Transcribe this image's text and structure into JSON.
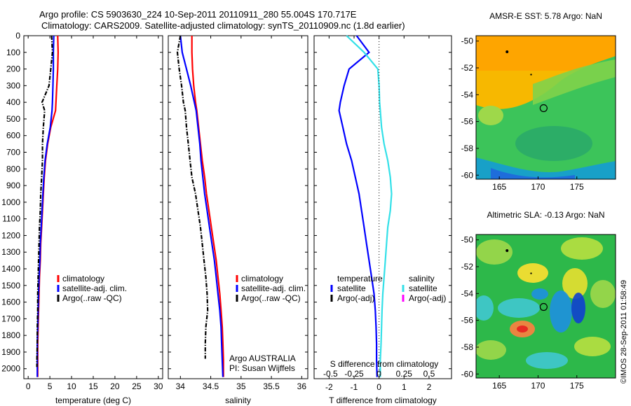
{
  "header": {
    "title_line1": "Argo profile: CS 5903630_224 10-Sep-2011 20110911_280 55.004S 170.717E",
    "title_line2": "Climatology: CARS2009. Satellite-adjusted climatology: synTS_20110909.nc (1.8d earlier)"
  },
  "credit": "©IMOS 28-Sep-2011 01:58:49",
  "colors": {
    "climatology": "#ff0000",
    "satellite": "#0000ff",
    "argo": "#000000",
    "salinity_satellite": "#33e0e8",
    "salinity_argo": "#ff00ff"
  },
  "chart_data": [
    {
      "id": "temperature",
      "type": "line",
      "xlabel": "temperature (deg C)",
      "ylabel": "",
      "xlim": [
        -1,
        31
      ],
      "ylim": [
        2060,
        0
      ],
      "xticks": [
        0,
        5,
        10,
        15,
        20,
        25,
        30
      ],
      "yticks": [
        0,
        100,
        200,
        300,
        400,
        500,
        600,
        700,
        800,
        900,
        1000,
        1100,
        1200,
        1300,
        1400,
        1500,
        1600,
        1700,
        1800,
        1900,
        2000
      ],
      "legend": [
        "climatology",
        "satellite-adj. clim.",
        "Argo(..raw -QC)"
      ],
      "series": [
        {
          "name": "climatology",
          "color": "#ff0000",
          "style": "solid",
          "x": [
            6.8,
            6.9,
            6.8,
            6.6,
            6.4,
            6.3,
            5.2,
            4.5,
            4.0,
            3.7,
            3.5,
            3.3,
            3.1,
            2.9,
            2.8,
            2.6,
            2.5,
            2.4,
            2.3,
            2.2,
            2.2,
            2.2
          ],
          "y": [
            0,
            100,
            200,
            300,
            400,
            450,
            550,
            650,
            750,
            850,
            950,
            1050,
            1150,
            1250,
            1350,
            1450,
            1550,
            1650,
            1750,
            1850,
            1950,
            2050
          ]
        },
        {
          "name": "satellite-adj. clim.",
          "color": "#0000ff",
          "style": "solid",
          "x": [
            5.9,
            5.8,
            5.8,
            5.7,
            5.6,
            5.5,
            5.1,
            4.4,
            3.9,
            3.6,
            3.4,
            3.2,
            3.0,
            2.8,
            2.7,
            2.5,
            2.4,
            2.3,
            2.2,
            2.1,
            2.1,
            2.1
          ],
          "y": [
            0,
            100,
            200,
            300,
            400,
            450,
            550,
            650,
            750,
            850,
            950,
            1050,
            1150,
            1250,
            1350,
            1450,
            1550,
            1650,
            1750,
            1850,
            1950,
            2050
          ]
        },
        {
          "name": "Argo(..raw -QC)",
          "color": "#000000",
          "style": "dashdot",
          "x": [
            5.4,
            5.6,
            5.2,
            4.8,
            3.2,
            3.8,
            3.5,
            3.3,
            3.3,
            3.1,
            2.9,
            2.8,
            2.6,
            2.5,
            2.4,
            2.3,
            2.2,
            2.2,
            2.1,
            2.1,
            2.0,
            2.0
          ],
          "y": [
            0,
            100,
            200,
            300,
            400,
            450,
            550,
            650,
            750,
            850,
            950,
            1050,
            1150,
            1250,
            1350,
            1450,
            1550,
            1650,
            1750,
            1850,
            1950,
            1990
          ]
        }
      ]
    },
    {
      "id": "salinity",
      "type": "line",
      "xlabel": "salinity",
      "ylabel": "",
      "xlim": [
        33.8,
        36.1
      ],
      "ylim": [
        2060,
        0
      ],
      "xticks": [
        34,
        34.5,
        35,
        35.5,
        36
      ],
      "legend": [
        "climatology",
        "satellite-adj. clim.",
        "Argo(..raw -QC)"
      ],
      "annotation": [
        "Argo AUSTRALIA",
        "PI: Susan Wijffels"
      ],
      "series": [
        {
          "name": "climatology",
          "color": "#ff0000",
          "style": "solid",
          "x": [
            34.19,
            34.19,
            34.2,
            34.22,
            34.25,
            34.27,
            34.3,
            34.33,
            34.36,
            34.4,
            34.43,
            34.47,
            34.51,
            34.55,
            34.59,
            34.62,
            34.65,
            34.67,
            34.69,
            34.7,
            34.71,
            34.71
          ],
          "y": [
            0,
            100,
            200,
            300,
            400,
            450,
            550,
            650,
            750,
            850,
            950,
            1050,
            1150,
            1250,
            1350,
            1450,
            1550,
            1650,
            1750,
            1850,
            1950,
            2050
          ]
        },
        {
          "name": "satellite-adj. clim.",
          "color": "#0000ff",
          "style": "solid",
          "x": [
            34.0,
            34.03,
            34.1,
            34.17,
            34.23,
            34.26,
            34.29,
            34.32,
            34.34,
            34.37,
            34.4,
            34.44,
            34.48,
            34.52,
            34.56,
            34.59,
            34.62,
            34.65,
            34.67,
            34.68,
            34.69,
            34.7
          ],
          "y": [
            0,
            100,
            200,
            300,
            400,
            450,
            550,
            650,
            750,
            850,
            950,
            1050,
            1150,
            1250,
            1350,
            1450,
            1550,
            1650,
            1750,
            1850,
            1950,
            2050
          ]
        },
        {
          "name": "Argo(..raw -QC)",
          "color": "#000000",
          "style": "dashdot",
          "x": [
            34.0,
            33.95,
            33.98,
            34.02,
            34.05,
            34.08,
            34.1,
            34.13,
            34.16,
            34.19,
            34.25,
            34.29,
            34.33,
            34.36,
            34.39,
            34.42,
            34.44,
            34.45,
            34.42,
            34.41,
            34.41,
            34.41
          ],
          "y": [
            0,
            100,
            200,
            300,
            400,
            450,
            550,
            650,
            750,
            850,
            950,
            1050,
            1150,
            1250,
            1350,
            1450,
            1550,
            1650,
            1750,
            1850,
            1900,
            1940
          ]
        }
      ]
    },
    {
      "id": "difference",
      "type": "line",
      "xlabel": "T difference from climatology",
      "xlabel2": "S difference from climatology",
      "ylabel": "",
      "xlim": [
        -2.6,
        2.9
      ],
      "ylim": [
        2060,
        0
      ],
      "xticks": [
        -2,
        -1,
        0,
        1,
        2
      ],
      "xticks_s": [
        "-0.5",
        "-0.25",
        "0",
        "0.25",
        "0.5"
      ],
      "xticks_s_pos": [
        -2,
        -1,
        0,
        1,
        2
      ],
      "legend_headers": [
        "temperature",
        "salinity"
      ],
      "legend": [
        "satellite",
        "Argo(-adj)",
        "satellite",
        "Argo(-adj)"
      ],
      "series": [
        {
          "name": "temperature satellite",
          "color": "#0000ff",
          "style": "solid",
          "x": [
            -0.9,
            -0.4,
            -1.2,
            -1.4,
            -1.55,
            -1.6,
            -1.45,
            -1.3,
            -1.1,
            -0.95,
            -0.8,
            -0.7,
            -0.6,
            -0.5,
            -0.4,
            -0.3,
            -0.2,
            -0.15,
            -0.12,
            -0.1,
            -0.1,
            -0.08
          ],
          "y": [
            0,
            100,
            200,
            300,
            400,
            450,
            550,
            650,
            750,
            850,
            950,
            1050,
            1150,
            1250,
            1350,
            1450,
            1550,
            1650,
            1750,
            1850,
            1950,
            2050
          ]
        },
        {
          "name": "salinity satellite",
          "color": "#33e0e8",
          "style": "solid",
          "x": [
            -1.3,
            -0.6,
            -0.05,
            0.0,
            0.02,
            0.05,
            0.1,
            0.2,
            0.35,
            0.45,
            0.5,
            0.45,
            0.35,
            0.3,
            0.25,
            0.2,
            0.15,
            0.12,
            0.1,
            0.08,
            0.05,
            0.05
          ],
          "y": [
            0,
            100,
            200,
            300,
            400,
            450,
            550,
            650,
            750,
            850,
            950,
            1050,
            1150,
            1250,
            1350,
            1450,
            1550,
            1650,
            1750,
            1850,
            1950,
            2050
          ]
        }
      ]
    },
    {
      "id": "sst_map",
      "type": "heatmap",
      "title": "AMSR-E SST: 5.78 Argo: NaN",
      "xlim": [
        162,
        180
      ],
      "ylim": [
        -60.3,
        -49.6
      ],
      "xticks": [
        165,
        170,
        175
      ],
      "yticks": [
        -50,
        -52,
        -54,
        -56,
        -58,
        -60
      ],
      "marker": {
        "lon": 170.717,
        "lat": -55.004
      }
    },
    {
      "id": "sla_map",
      "type": "heatmap",
      "title": "Altimetric SLA: -0.13 Argo: NaN",
      "xlim": [
        162,
        180
      ],
      "ylim": [
        -60.3,
        -49.6
      ],
      "xticks": [
        165,
        170,
        175
      ],
      "yticks": [
        -50,
        -52,
        -54,
        -56,
        -58,
        -60
      ],
      "marker": {
        "lon": 170.717,
        "lat": -55.004
      }
    }
  ]
}
